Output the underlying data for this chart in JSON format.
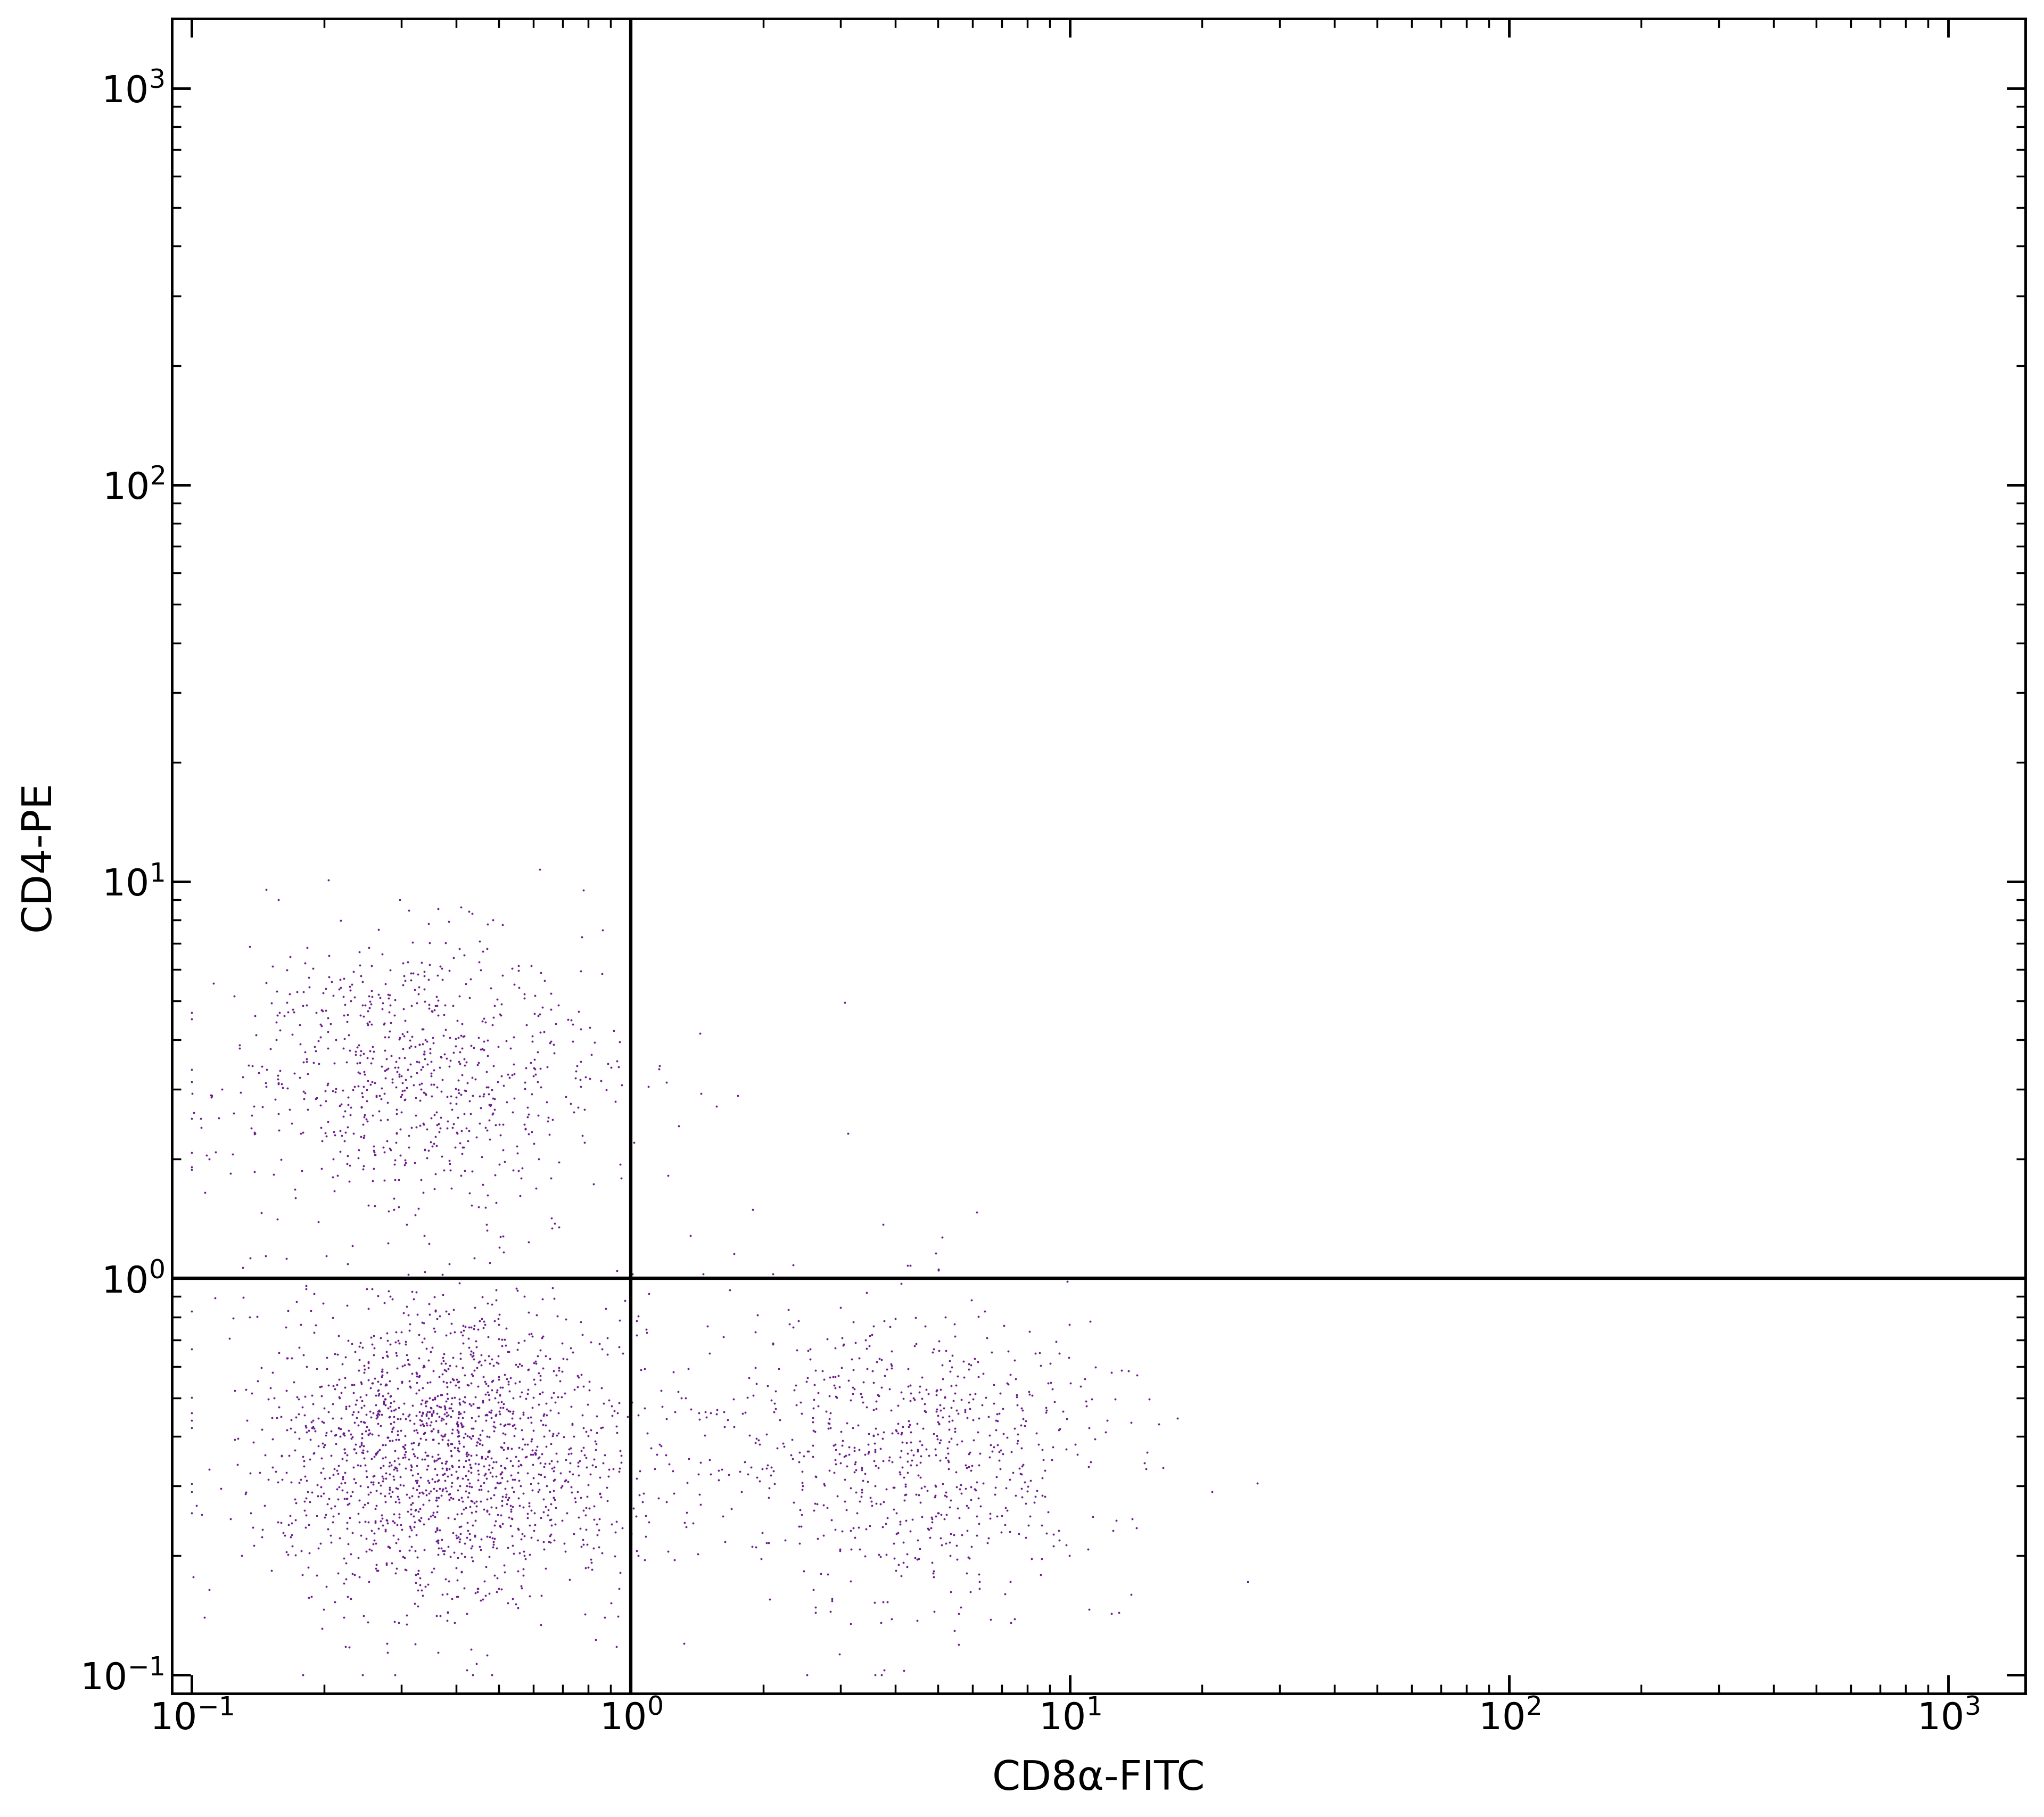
{
  "xlabel": "CD8α-FITC",
  "ylabel": "CD4-PE",
  "xlim": [
    0.09,
    1500
  ],
  "ylim": [
    0.09,
    1500
  ],
  "dot_color": "#6B1E8A",
  "dot_size": 8,
  "background_color": "#ffffff",
  "gate_x": 1.0,
  "gate_y": 1.0,
  "xlabel_fontsize": 55,
  "ylabel_fontsize": 55,
  "tick_fontsize": 50,
  "seed": 42,
  "n_ll": 1800,
  "n_lr": 800,
  "n_ul": 800,
  "n_ur": 3,
  "ll_x_mean": -1.0,
  "ll_x_sigma": 0.5,
  "ll_y_mean": -1.0,
  "ll_y_sigma": 0.45,
  "lr_x_mean": 1.5,
  "lr_x_sigma": 0.55,
  "lr_y_mean": -1.0,
  "lr_y_sigma": 0.45,
  "ul_x_mean": -1.1,
  "ul_x_sigma": 0.5,
  "ul_y_mean": 1.2,
  "ul_y_sigma": 0.4,
  "ur_x_mean": 1.5,
  "ur_x_sigma": 0.4,
  "ur_y_mean": 1.1,
  "ur_y_sigma": 0.3
}
